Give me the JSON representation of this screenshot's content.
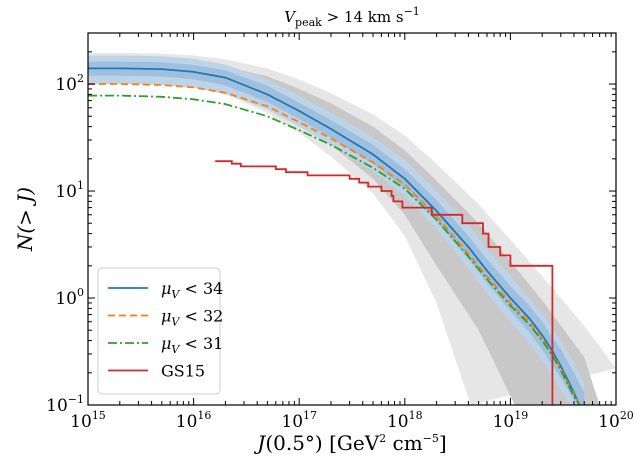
{
  "chart_data": {
    "type": "line",
    "title": "V_peak > 14 km s^-1",
    "title_parts": {
      "sym": "V",
      "sub": "peak",
      "rest": " > 14 km s",
      "sup": "−1"
    },
    "xlabel": "J(0.5°) [GeV² cm⁻⁵]",
    "xlabel_parts": {
      "a": "J",
      "b": "(0.5°) [GeV",
      "c": "2",
      "d": " cm",
      "e": "−5",
      "f": "]"
    },
    "ylabel": "N(> J)",
    "x_scale": "log",
    "y_scale": "log",
    "xlim": [
      1000000000000000.0,
      1e+20
    ],
    "ylim": [
      0.1,
      300
    ],
    "legend_position": "lower-left",
    "x_ticks": [
      {
        "value": 1000000000000000.0,
        "base": "10",
        "exp": "15"
      },
      {
        "value": 1e+16,
        "base": "10",
        "exp": "16"
      },
      {
        "value": 1e+17,
        "base": "10",
        "exp": "17"
      },
      {
        "value": 1e+18,
        "base": "10",
        "exp": "18"
      },
      {
        "value": 1e+19,
        "base": "10",
        "exp": "19"
      },
      {
        "value": 1e+20,
        "base": "10",
        "exp": "20"
      }
    ],
    "y_ticks": [
      {
        "value": 0.1,
        "base": "10",
        "exp": "−1"
      },
      {
        "value": 1,
        "base": "10",
        "exp": "0"
      },
      {
        "value": 10,
        "base": "10",
        "exp": "1"
      },
      {
        "value": 100,
        "base": "10",
        "exp": "2"
      }
    ],
    "series": [
      {
        "name": "μ_V < 34",
        "label_sym": "μ",
        "label_sub": "V",
        "label_rest": " < 34",
        "color": "#1f77b4",
        "dash": "solid",
        "x": [
          1000000000000000.0,
          2000000000000000.0,
          5000000000000000.0,
          1e+16,
          2e+16,
          5e+16,
          1e+17,
          2e+17,
          5e+17,
          1e+18,
          2e+18,
          4e+18,
          6e+18,
          1e+19,
          1.5e+19,
          2e+19,
          2.5e+19,
          3e+19,
          3.5e+19,
          4e+19,
          4.5e+19
        ],
        "y": [
          140,
          140,
          138,
          130,
          115,
          80,
          56,
          38,
          22,
          13,
          6.5,
          3.0,
          1.8,
          1.0,
          0.65,
          0.45,
          0.32,
          0.23,
          0.17,
          0.13,
          0.1
        ]
      },
      {
        "name": "μ_V < 32",
        "label_sym": "μ",
        "label_sub": "V",
        "label_rest": " < 32",
        "color": "#ff7f0e",
        "dash": "dashed",
        "x": [
          1000000000000000.0,
          2000000000000000.0,
          5000000000000000.0,
          1e+16,
          2e+16,
          5e+16,
          1e+17,
          2e+17,
          5e+17,
          1e+18,
          2e+18,
          4e+18,
          6e+18,
          1e+19,
          1.5e+19,
          2e+19,
          2.5e+19,
          3e+19,
          3.5e+19,
          4e+19,
          4.5e+19
        ],
        "y": [
          100,
          100,
          98,
          93,
          83,
          62,
          44,
          31,
          18.5,
          11.5,
          5.8,
          2.6,
          1.6,
          0.9,
          0.6,
          0.42,
          0.3,
          0.22,
          0.16,
          0.125,
          0.1
        ]
      },
      {
        "name": "μ_V < 31",
        "label_sym": "μ",
        "label_sub": "V",
        "label_rest": " < 31",
        "color": "#2ca02c",
        "dash": "dashdot",
        "x": [
          1000000000000000.0,
          2000000000000000.0,
          5000000000000000.0,
          1e+16,
          2e+16,
          5e+16,
          1e+17,
          2e+17,
          5e+17,
          1e+18,
          2e+18,
          4e+18,
          6e+18,
          1e+19,
          1.5e+19,
          2e+19,
          2.5e+19,
          3e+19,
          3.5e+19,
          4e+19,
          4.5e+19
        ],
        "y": [
          78,
          78,
          76,
          72,
          65,
          50,
          37,
          27,
          16.5,
          10.5,
          5.4,
          2.45,
          1.5,
          0.85,
          0.57,
          0.4,
          0.29,
          0.21,
          0.155,
          0.12,
          0.1
        ]
      },
      {
        "name": "GS15",
        "label_sym": "",
        "label_sub": "",
        "label_rest": "GS15",
        "color": "#d62728",
        "dash": "step",
        "x": [
          1.6e+16,
          2.3e+16,
          2.8e+16,
          6e+16,
          7.5e+16,
          1.2e+17,
          3e+17,
          3.7e+17,
          4.5e+17,
          6e+17,
          7.5e+17,
          7.8e+17,
          9.5e+17,
          1.8e+18,
          2.8e+18,
          3.5e+18,
          5.5e+18,
          6.2e+18,
          8e+18,
          1e+19,
          1.2e+19,
          2.5e+19
        ],
        "y": [
          19,
          18,
          17,
          16,
          15,
          14,
          13,
          12,
          11,
          10,
          9,
          8,
          7,
          6,
          6,
          5,
          4,
          3,
          2.5,
          2,
          2,
          0.1
        ]
      }
    ],
    "bands": [
      {
        "fill": "#e6e6e6",
        "x": [
          1000000000000000.0,
          2000000000000000.0,
          5000000000000000.0,
          1e+16,
          2e+16,
          5e+16,
          1e+17,
          2e+17,
          5e+17,
          1e+18,
          2e+18,
          5e+18,
          1e+19,
          2e+19,
          5e+19,
          1e+20
        ],
        "y_upper": [
          195,
          195,
          192,
          185,
          170,
          140,
          110,
          82,
          52,
          33,
          18,
          7.5,
          3.5,
          1.6,
          0.55,
          0.22
        ],
        "y_lower": [
          100,
          100,
          98,
          92,
          80,
          54,
          35,
          21,
          9.5,
          3.8,
          0.9,
          0.1,
          0.1,
          0.1,
          0.1,
          0.1
        ],
        "lower_cut": [
          1000000000000000.0,
          2000000000000000.0,
          5000000000000000.0,
          1e+16,
          2e+16,
          5e+16,
          1e+17,
          2e+17,
          5e+17,
          1e+18,
          2e+18,
          4.2e+18
        ]
      },
      {
        "fill": "#c8c8c8",
        "x": [
          1000000000000000.0,
          2000000000000000.0,
          5000000000000000.0,
          1e+16,
          2e+16,
          5e+16,
          1e+17,
          2e+17,
          5e+17,
          1e+18,
          2e+18,
          5e+18,
          1e+19,
          2e+19,
          5e+19,
          7e+19
        ],
        "y_upper": [
          170,
          170,
          168,
          160,
          146,
          118,
          90,
          66,
          40,
          24,
          12.5,
          5.0,
          2.2,
          0.95,
          0.28,
          0.1
        ],
        "y_lower": [
          115,
          115,
          112,
          105,
          92,
          64,
          43,
          27,
          13,
          6,
          2.0,
          0.5,
          0.1,
          0.1,
          0.1,
          0.1
        ],
        "lower_cut": [
          1000000000000000.0,
          2000000000000000.0,
          5000000000000000.0,
          1e+16,
          2e+16,
          5e+16,
          1e+17,
          2e+17,
          5e+17,
          1e+18,
          2e+18,
          5e+18,
          1.1e+19
        ]
      },
      {
        "fill": "#bcd3e8",
        "x": [
          1000000000000000.0,
          2000000000000000.0,
          5000000000000000.0,
          1e+16,
          2e+16,
          5e+16,
          1e+17,
          2e+17,
          5e+17,
          1e+18,
          2e+18,
          4e+18,
          6e+18,
          1e+19,
          1.5e+19,
          2e+19,
          3e+19,
          4e+19,
          5e+19
        ],
        "y_upper": [
          185,
          185,
          182,
          172,
          152,
          110,
          78,
          54,
          32,
          19.5,
          10,
          4.8,
          2.9,
          1.6,
          1.0,
          0.72,
          0.4,
          0.25,
          0.16
        ],
        "y_lower": [
          100,
          100,
          98,
          93,
          81,
          58,
          40,
          27,
          15.5,
          9,
          4.4,
          1.9,
          1.1,
          0.6,
          0.38,
          0.26,
          0.14,
          0.09,
          0.09
        ],
        "lower_cut": null
      },
      {
        "fill": "#9ec0de",
        "x": [
          1000000000000000.0,
          2000000000000000.0,
          5000000000000000.0,
          1e+16,
          2e+16,
          5e+16,
          1e+17,
          2e+17,
          5e+17,
          1e+18,
          2e+18,
          4e+18,
          6e+18,
          1e+19,
          1.5e+19,
          2e+19,
          3e+19,
          4e+19,
          5e+19
        ],
        "y_upper": [
          162,
          162,
          160,
          151,
          134,
          96,
          67,
          46,
          27,
          16,
          8.2,
          3.8,
          2.3,
          1.3,
          0.85,
          0.6,
          0.33,
          0.2,
          0.13
        ],
        "y_lower": [
          120,
          120,
          118,
          111,
          97,
          68,
          47,
          31.5,
          18,
          10.6,
          5.2,
          2.3,
          1.38,
          0.76,
          0.48,
          0.33,
          0.18,
          0.11,
          0.09
        ],
        "lower_cut": null
      }
    ]
  }
}
